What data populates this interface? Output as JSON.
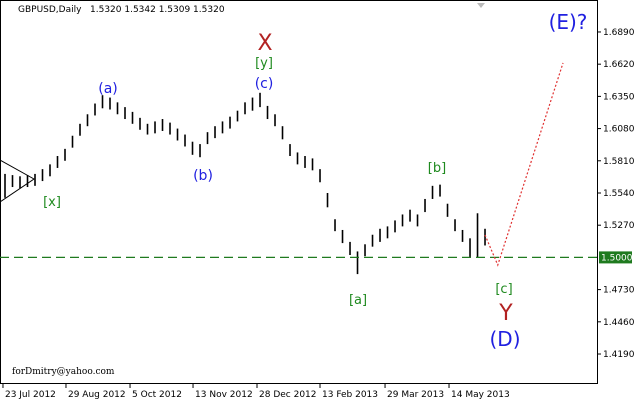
{
  "chart_data": {
    "type": "ohlc",
    "title": "GBPUSD,Daily",
    "quote": "1.5320 1.5342 1.5309 1.5320",
    "xlim": [
      -0.667,
      78.93
    ],
    "ylim": [
      1.3947,
      1.7158
    ],
    "xticks": [
      {
        "value": -0.27,
        "label": "23 Jul 2012"
      },
      {
        "value": 8.13,
        "label": "29 Aug 2012"
      },
      {
        "value": 16.67,
        "label": "5 Oct 2012"
      },
      {
        "value": 25.07,
        "label": "13 Nov 2012"
      },
      {
        "value": 33.6,
        "label": "28 Dec 2012"
      },
      {
        "value": 42,
        "label": "13 Feb 2013"
      },
      {
        "value": 50.67,
        "label": "29 Mar 2013"
      },
      {
        "value": 59.2,
        "label": "14 May 2013"
      }
    ],
    "yticks": [
      {
        "value": 1.689,
        "label": "1.6890"
      },
      {
        "value": 1.662,
        "label": "1.6620"
      },
      {
        "value": 1.635,
        "label": "1.6350"
      },
      {
        "value": 1.608,
        "label": "1.6080"
      },
      {
        "value": 1.581,
        "label": "1.5810"
      },
      {
        "value": 1.554,
        "label": "1.5540"
      },
      {
        "value": 1.527,
        "label": "1.5270"
      },
      {
        "value": 1.473,
        "label": "1.4730"
      },
      {
        "value": 1.446,
        "label": "1.4460"
      },
      {
        "value": 1.419,
        "label": "1.4190"
      }
    ],
    "series": [
      {
        "name": "GBPUSD",
        "color": "#000000",
        "high": [
          1.57,
          1.569,
          1.568,
          1.569,
          1.57,
          1.574,
          1.578,
          1.585,
          1.591,
          1.602,
          1.612,
          1.62,
          1.629,
          1.636,
          1.634,
          1.63,
          1.626,
          1.622,
          1.617,
          1.612,
          1.614,
          1.616,
          1.613,
          1.608,
          1.603,
          1.597,
          1.595,
          1.605,
          1.61,
          1.614,
          1.618,
          1.623,
          1.63,
          1.634,
          1.638,
          1.627,
          1.62,
          1.61,
          1.595,
          1.588,
          1.585,
          1.583,
          1.574,
          1.554,
          1.532,
          1.523,
          1.513,
          1.505,
          1.511,
          1.519,
          1.524,
          1.526,
          1.531,
          1.536,
          1.54,
          1.536,
          1.549,
          1.56,
          1.561,
          1.545,
          1.532,
          1.523,
          1.516,
          1.537,
          1.524
        ],
        "low": [
          1.55,
          1.559,
          1.558,
          1.559,
          1.56,
          1.564,
          1.568,
          1.575,
          1.581,
          1.592,
          1.602,
          1.61,
          1.619,
          1.625,
          1.624,
          1.62,
          1.616,
          1.612,
          1.607,
          1.603,
          1.604,
          1.606,
          1.603,
          1.598,
          1.593,
          1.586,
          1.584,
          1.595,
          1.6,
          1.604,
          1.608,
          1.614,
          1.62,
          1.623,
          1.626,
          1.616,
          1.61,
          1.599,
          1.585,
          1.578,
          1.575,
          1.573,
          1.563,
          1.542,
          1.522,
          1.512,
          1.502,
          1.486,
          1.501,
          1.509,
          1.513,
          1.516,
          1.521,
          1.526,
          1.53,
          1.526,
          1.538,
          1.549,
          1.551,
          1.534,
          1.522,
          1.513,
          1.5,
          1.5,
          1.51
        ]
      }
    ],
    "level": {
      "value": 1.5,
      "label": "1.5000",
      "color": "#1f7a1f"
    },
    "projection": {
      "x": [
        64,
        65.7,
        74.4
      ],
      "values": [
        1.5188,
        1.4936,
        1.663
      ],
      "color": "#e03030"
    },
    "watermark": "forDmitry@yahoo.com",
    "annotations": [
      {
        "text": "X",
        "color": "#b22222"
      },
      {
        "text": "[y]",
        "color": "#1f8a1f"
      },
      {
        "text": "(c)",
        "color": "#2020e0"
      },
      {
        "text": "(a)",
        "color": "#2020e0"
      },
      {
        "text": "(b)",
        "color": "#2020e0"
      },
      {
        "text": "[x]",
        "color": "#1f8a1f"
      },
      {
        "text": "[b]",
        "color": "#1f8a1f"
      },
      {
        "text": "[a]",
        "color": "#1f8a1f"
      },
      {
        "text": "[c]",
        "color": "#1f8a1f"
      },
      {
        "text": "Y",
        "color": "#b22222"
      },
      {
        "text": "(D)",
        "color": "#2020e0"
      },
      {
        "text": "(E)?",
        "color": "#2020e0"
      }
    ]
  }
}
